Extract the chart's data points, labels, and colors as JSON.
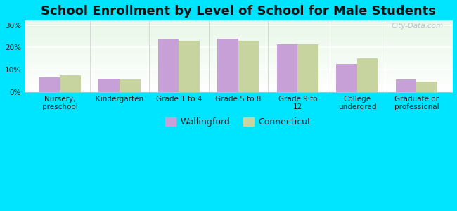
{
  "title": "School Enrollment by Level of School for Male Students",
  "categories": [
    "Nursery,\npreschool",
    "Kindergarten",
    "Grade 1 to 4",
    "Grade 5 to 8",
    "Grade 9 to\n12",
    "College\nundergrad",
    "Graduate or\nprofessional"
  ],
  "wallingford": [
    6.5,
    6.0,
    23.5,
    24.0,
    21.5,
    12.5,
    5.5
  ],
  "connecticut": [
    7.5,
    5.5,
    23.0,
    23.0,
    21.5,
    15.0,
    4.5
  ],
  "wallingford_color": "#c8a0d8",
  "connecticut_color": "#c8d4a0",
  "background_color": "#00e5ff",
  "ylabel_ticks": [
    "0%",
    "10%",
    "20%",
    "30%"
  ],
  "yticks": [
    0,
    10,
    20,
    30
  ],
  "ylim": [
    0,
    32
  ],
  "bar_width": 0.35,
  "title_fontsize": 13,
  "tick_fontsize": 7.5,
  "legend_fontsize": 9,
  "watermark": "City-Data.com"
}
